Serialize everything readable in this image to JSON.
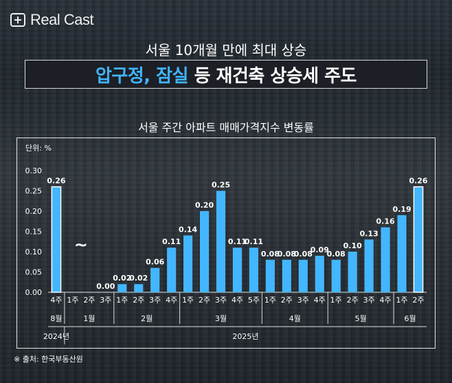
{
  "brand": {
    "name": "Real Cast"
  },
  "headline": "서울 10개월 만에 최대 상승",
  "title": {
    "accent": "압구정, 잠실",
    "rest": "등 재건축 상승세 주도"
  },
  "chart_data": {
    "type": "bar",
    "title": "서울 주간 아파트 매매가격지수 변동률",
    "unit_label": "단위: %",
    "ylim": [
      0,
      0.3
    ],
    "yticks": [
      "0.00",
      "0.05",
      "0.10",
      "0.15",
      "0.20",
      "0.25",
      "0.30"
    ],
    "color": "#43b6ff",
    "gap_marker": "~",
    "series": [
      {
        "values": [
          0.26,
          null,
          null,
          0.0,
          0.02,
          0.02,
          0.06,
          0.11,
          0.14,
          0.2,
          0.25,
          0.11,
          0.11,
          0.08,
          0.08,
          0.08,
          0.09,
          0.08,
          0.1,
          0.13,
          0.16,
          0.19,
          0.26
        ]
      }
    ],
    "data_labels": [
      "0.26",
      "",
      "",
      "0.00",
      "0.02",
      "0.02",
      "0.06",
      "0.11",
      "0.14",
      "0.20",
      "0.25",
      "0.11",
      "0.11",
      "0.08",
      "0.08",
      "0.08",
      "0.09",
      "0.08",
      "0.10",
      "0.13",
      "0.16",
      "0.19",
      "0.26"
    ],
    "highlight": [
      0,
      22
    ],
    "categories": [
      "4주",
      "1주",
      "2주",
      "3주",
      "1주",
      "2주",
      "3주",
      "4주",
      "1주",
      "2주",
      "3주",
      "4주",
      "5주",
      "1주",
      "2주",
      "3주",
      "4주",
      "1주",
      "2주",
      "3주",
      "4주",
      "1주",
      "2주"
    ],
    "months": [
      {
        "label": "8월",
        "start": 0,
        "end": 0
      },
      {
        "label": "1월",
        "start": 1,
        "end": 3
      },
      {
        "label": "2월",
        "start": 4,
        "end": 7
      },
      {
        "label": "3월",
        "start": 8,
        "end": 12
      },
      {
        "label": "4월",
        "start": 13,
        "end": 16
      },
      {
        "label": "5월",
        "start": 17,
        "end": 20
      },
      {
        "label": "6월",
        "start": 21,
        "end": 22
      }
    ],
    "years": [
      {
        "label": "2024년",
        "start": 0,
        "end": 0
      },
      {
        "label": "2025년",
        "start": 1,
        "end": 22
      }
    ]
  },
  "source": "※ 출처: 한국부동산원"
}
